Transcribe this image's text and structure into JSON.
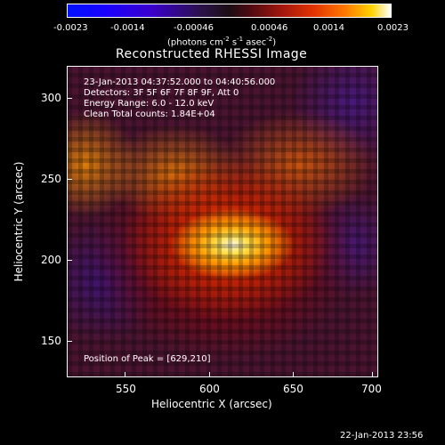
{
  "colorbar": {
    "ticks": [
      "-0.0023",
      "-0.0014",
      "-0.00046",
      "0.00046",
      "0.0014",
      "0.0023"
    ],
    "unit_text": "(photons cm",
    "unit_exp1": "-2",
    "unit_mid": " s",
    "unit_exp2": "-1",
    "unit_mid2": " asec",
    "unit_exp3": "-2",
    "unit_close": ")"
  },
  "title": "Reconstructed RHESSI Image",
  "info": {
    "time": "23-Jan-2013 04:37:52.000 to 04:40:56.000",
    "detectors": "Detectors: 3F 5F 6F 7F 8F 9F, Att 0",
    "energy": "Energy Range: 6.0 - 12.0 keV",
    "method": "Clean     Total counts: 1.84E+04",
    "peak": "Position of Peak = [629,210]"
  },
  "axes": {
    "xlabel": "Heliocentric X (arcsec)",
    "ylabel": "Heliocentric Y (arcsec)",
    "xticks": [
      "550",
      "600",
      "650",
      "700"
    ],
    "yticks": [
      "300",
      "250",
      "200",
      "150"
    ]
  },
  "timestamp": "22-Jan-2013 23:56",
  "colors": {
    "background": "#000000",
    "text": "#ffffff"
  }
}
